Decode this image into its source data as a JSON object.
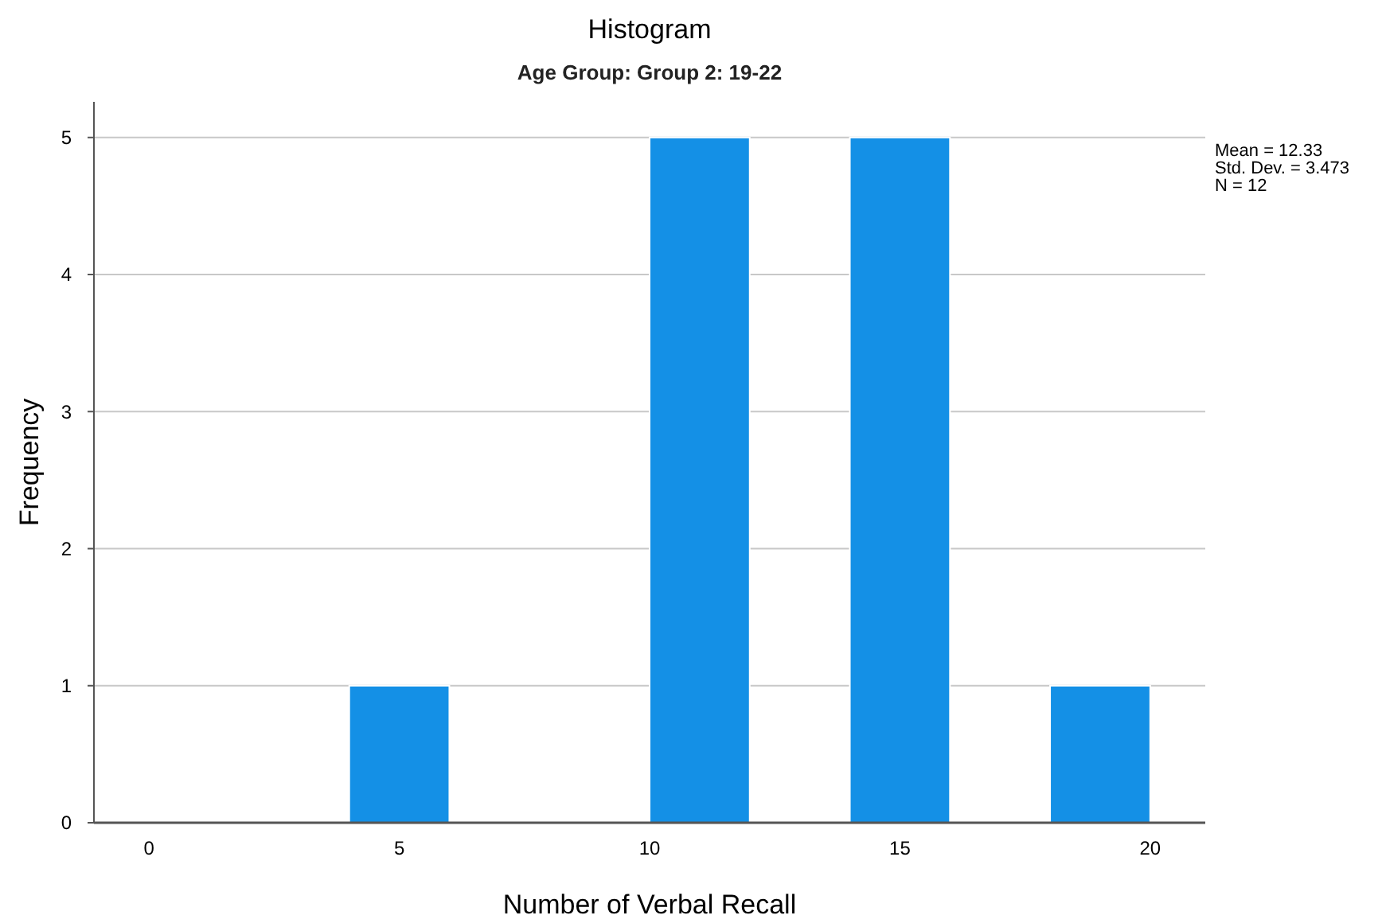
{
  "chart_data": {
    "type": "histogram",
    "title": "Histogram",
    "subtitle": "Age Group: Group 2: 19-22",
    "xlabel": "Number of Verbal Recall",
    "ylabel": "Frequency",
    "bins": [
      4,
      6,
      8,
      10,
      12,
      14,
      16,
      18,
      20
    ],
    "values": [
      1,
      0,
      0,
      5,
      0,
      5,
      0,
      1
    ],
    "color": "#1490e6",
    "xlim": [
      -1.1,
      21.1
    ],
    "xticks": [
      0,
      5,
      10,
      15,
      20
    ],
    "ylim": [
      0,
      5.26
    ],
    "yticks": [
      0,
      1,
      2,
      3,
      4,
      5
    ],
    "grid": "y",
    "annotations": [
      "Mean = 12.33",
      "Std. Dev. = 3.473",
      "N = 12"
    ]
  }
}
